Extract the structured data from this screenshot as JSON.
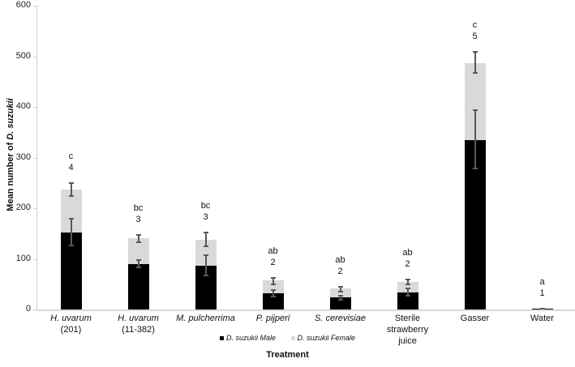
{
  "chart_data": {
    "type": "bar",
    "stacked": true,
    "title": "",
    "xlabel": "Treatment",
    "ylabel": "Mean number of D. suzukii",
    "ylabel_parts": {
      "plain": "Mean number of ",
      "italic": "D. suzukii"
    },
    "ylim": [
      0,
      600
    ],
    "yticks": [
      0,
      100,
      200,
      300,
      400,
      500,
      600
    ],
    "grid": false,
    "legend_position": "bottom",
    "categories": [
      {
        "line1": "H. uvarum",
        "line2": "(201)",
        "italic": true
      },
      {
        "line1": "H. uvarum",
        "line2": "(11-382)",
        "italic": true
      },
      {
        "line1": "M. pulcherrima",
        "line2": "",
        "italic": true
      },
      {
        "line1": "P. pijperi",
        "line2": "",
        "italic": true
      },
      {
        "line1": "S. cerevisiae",
        "line2": "",
        "italic": true
      },
      {
        "line1": "Sterile strawberry",
        "line2": "juice",
        "italic": false
      },
      {
        "line1": "Gasser",
        "line2": "",
        "italic": false
      },
      {
        "line1": "Water",
        "line2": "",
        "italic": false
      }
    ],
    "series": [
      {
        "name": "D. suzukii Male",
        "color": "#000000",
        "values": [
          152,
          90,
          87,
          32,
          24,
          34,
          335,
          1
        ],
        "error": [
          [
            126,
            179
          ],
          [
            84,
            97
          ],
          [
            68,
            108
          ],
          [
            25,
            38
          ],
          [
            20,
            28
          ],
          [
            27,
            42
          ],
          [
            278,
            393
          ],
          [
            0,
            1
          ]
        ]
      },
      {
        "name": "D. suzukii Female",
        "color": "#d9d9d9",
        "values": [
          85,
          51,
          51,
          25,
          17,
          20,
          152,
          0
        ],
        "total_error": [
          [
            224,
            250
          ],
          [
            133,
            148
          ],
          [
            125,
            152
          ],
          [
            50,
            62
          ],
          [
            36,
            45
          ],
          [
            49,
            59
          ],
          [
            467,
            509
          ],
          [
            0,
            1
          ]
        ]
      }
    ],
    "totals": [
      237,
      141,
      138,
      57,
      41,
      54,
      487,
      1
    ],
    "annotations": [
      {
        "letters": "c",
        "n": "4"
      },
      {
        "letters": "bc",
        "n": "3"
      },
      {
        "letters": "bc",
        "n": "3"
      },
      {
        "letters": "ab",
        "n": "2"
      },
      {
        "letters": "ab",
        "n": "2"
      },
      {
        "letters": "ab",
        "n": "2"
      },
      {
        "letters": "c",
        "n": "5"
      },
      {
        "letters": "a",
        "n": "1"
      }
    ]
  }
}
